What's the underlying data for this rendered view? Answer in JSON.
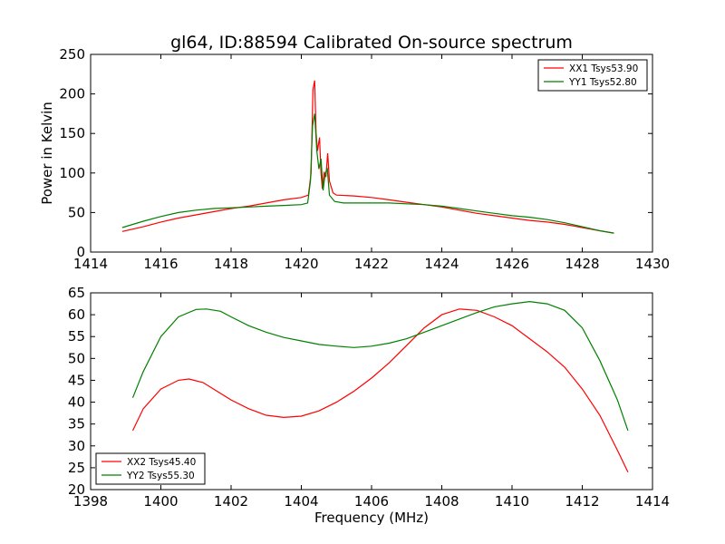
{
  "chart_data": [
    {
      "type": "line",
      "title": "gl64, ID:88594 Calibrated On-source spectrum",
      "xlabel": "",
      "ylabel": "Power in Kelvin",
      "xlim": [
        1414,
        1430
      ],
      "ylim": [
        0,
        250
      ],
      "xticks": [
        1414,
        1416,
        1418,
        1420,
        1422,
        1424,
        1426,
        1428,
        1430
      ],
      "yticks": [
        0,
        50,
        100,
        150,
        200,
        250
      ],
      "legend": "top-right",
      "series": [
        {
          "name": "XX1 Tsys53.90",
          "color": "#ff0000",
          "x": [
            1414.9,
            1415.5,
            1416,
            1416.5,
            1417,
            1417.5,
            1418,
            1418.5,
            1419,
            1419.5,
            1420,
            1420.2,
            1420.28,
            1420.33,
            1420.38,
            1420.42,
            1420.46,
            1420.52,
            1420.56,
            1420.6,
            1420.65,
            1420.7,
            1420.75,
            1420.8,
            1420.9,
            1421,
            1421.5,
            1422,
            1422.5,
            1423,
            1423.5,
            1424,
            1424.5,
            1425,
            1425.5,
            1426,
            1426.5,
            1427,
            1427.5,
            1428,
            1428.5,
            1428.9
          ],
          "y": [
            26,
            32,
            38,
            43,
            47,
            51,
            55,
            58,
            62,
            66,
            69,
            72,
            100,
            205,
            217,
            150,
            128,
            145,
            100,
            80,
            100,
            95,
            125,
            90,
            75,
            72,
            71,
            69,
            66,
            63,
            60,
            57,
            53,
            49,
            46,
            43,
            40,
            38,
            35,
            31,
            27,
            24
          ]
        },
        {
          "name": "YY1 Tsys52.80",
          "color": "#008000",
          "x": [
            1414.9,
            1415.5,
            1416,
            1416.5,
            1417,
            1417.5,
            1418,
            1418.5,
            1419,
            1419.5,
            1420,
            1420.18,
            1420.26,
            1420.32,
            1420.38,
            1420.44,
            1420.5,
            1420.56,
            1420.62,
            1420.68,
            1420.74,
            1420.8,
            1420.95,
            1421.2,
            1422,
            1422.5,
            1423,
            1423.5,
            1424,
            1424.5,
            1425,
            1425.5,
            1426,
            1426.5,
            1427,
            1427.5,
            1428,
            1428.5,
            1428.9
          ],
          "y": [
            31,
            39,
            45,
            50,
            53,
            55,
            56,
            57,
            58,
            59,
            60,
            62,
            90,
            160,
            175,
            128,
            105,
            118,
            78,
            100,
            105,
            72,
            64,
            62,
            62,
            62,
            61,
            60,
            58,
            55,
            52,
            49,
            46,
            44,
            41,
            37,
            32,
            27,
            24
          ]
        }
      ]
    },
    {
      "type": "line",
      "title": "",
      "xlabel": "Frequency (MHz)",
      "ylabel": "",
      "xlim": [
        1398,
        1414
      ],
      "ylim": [
        20,
        65
      ],
      "xticks": [
        1398,
        1400,
        1402,
        1404,
        1406,
        1408,
        1410,
        1412,
        1414
      ],
      "yticks": [
        20,
        25,
        30,
        35,
        40,
        45,
        50,
        55,
        60,
        65
      ],
      "legend": "bottom-left",
      "series": [
        {
          "name": "XX2 Tsys45.40",
          "color": "#ff0000",
          "x": [
            1399.2,
            1399.5,
            1400,
            1400.5,
            1400.8,
            1401.2,
            1401.6,
            1402,
            1402.5,
            1403,
            1403.5,
            1404,
            1404.5,
            1405,
            1405.5,
            1406,
            1406.5,
            1407,
            1407.5,
            1408,
            1408.5,
            1409,
            1409.5,
            1410,
            1410.5,
            1411,
            1411.5,
            1412,
            1412.5,
            1413,
            1413.3
          ],
          "y": [
            33.5,
            38.5,
            43,
            45,
            45.3,
            44.5,
            42.5,
            40.5,
            38.5,
            37,
            36.5,
            36.8,
            38,
            40,
            42.5,
            45.5,
            49,
            53,
            57,
            60,
            61.3,
            61,
            59.5,
            57.5,
            54.5,
            51.5,
            48,
            43,
            37,
            29,
            24
          ]
        },
        {
          "name": "YY2 Tsys55.30",
          "color": "#008000",
          "x": [
            1399.2,
            1399.5,
            1400,
            1400.5,
            1401,
            1401.3,
            1401.7,
            1402,
            1402.5,
            1403,
            1403.5,
            1404,
            1404.5,
            1405,
            1405.5,
            1406,
            1406.5,
            1407,
            1407.5,
            1408,
            1408.5,
            1409,
            1409.5,
            1410,
            1410.5,
            1411,
            1411.5,
            1412,
            1412.5,
            1413,
            1413.3
          ],
          "y": [
            41,
            47,
            55,
            59.5,
            61.2,
            61.3,
            60.8,
            59.5,
            57.5,
            56,
            54.8,
            54,
            53.2,
            52.8,
            52.5,
            52.8,
            53.5,
            54.5,
            56,
            57.5,
            59,
            60.5,
            61.8,
            62.5,
            63,
            62.5,
            61,
            57,
            49.5,
            40.5,
            33.5
          ]
        }
      ]
    }
  ]
}
